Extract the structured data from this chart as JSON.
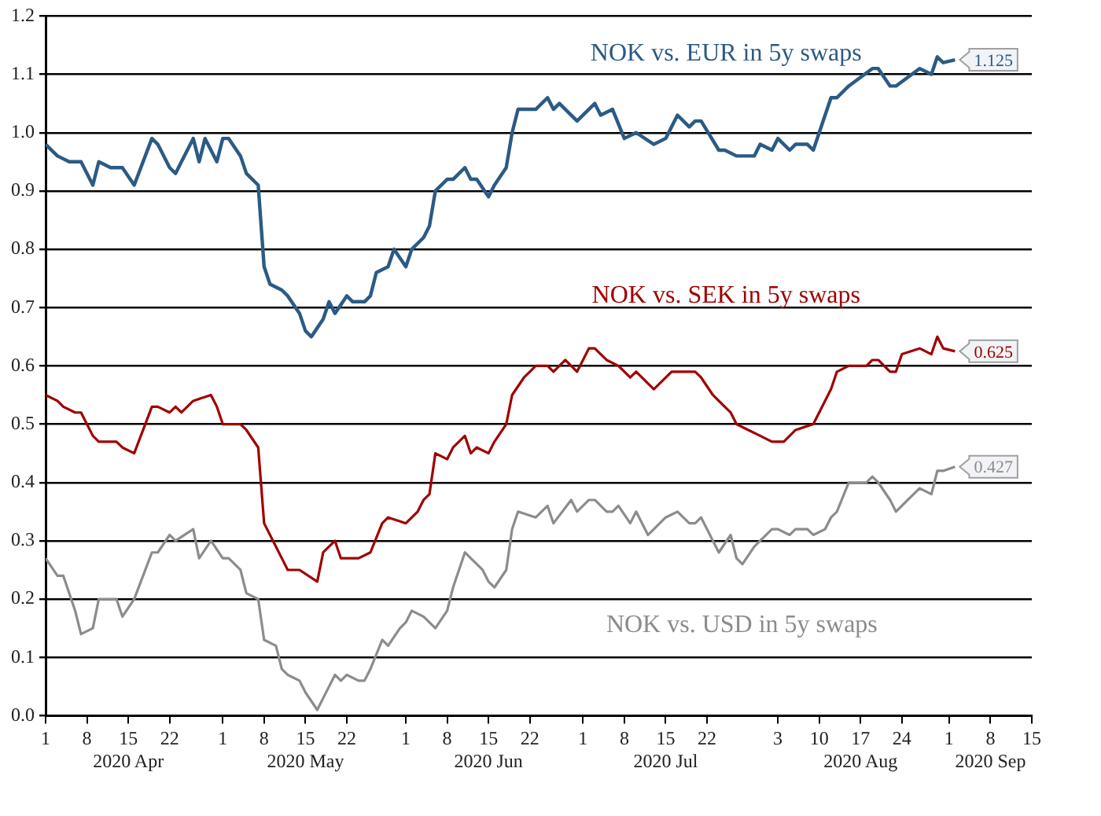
{
  "chart_data": {
    "type": "line",
    "xlim": [
      "2020-04-01",
      "2020-09-15"
    ],
    "xticks": [
      {
        "value": "2020-04-01",
        "label": "1"
      },
      {
        "value": "2020-04-08",
        "label": "8"
      },
      {
        "value": "2020-04-15",
        "label": "15\n2020 Apr"
      },
      {
        "value": "2020-04-22",
        "label": "22"
      },
      {
        "value": "2020-05-01",
        "label": "1"
      },
      {
        "value": "2020-05-08",
        "label": "8"
      },
      {
        "value": "2020-05-15",
        "label": "15\n2020 May"
      },
      {
        "value": "2020-05-22",
        "label": "22"
      },
      {
        "value": "2020-06-01",
        "label": "1"
      },
      {
        "value": "2020-06-08",
        "label": "8"
      },
      {
        "value": "2020-06-15",
        "label": "15\n2020 Jun"
      },
      {
        "value": "2020-06-22",
        "label": "22"
      },
      {
        "value": "2020-07-01",
        "label": "1"
      },
      {
        "value": "2020-07-08",
        "label": "8"
      },
      {
        "value": "2020-07-15",
        "label": "15\n2020 Jul"
      },
      {
        "value": "2020-07-22",
        "label": "22"
      },
      {
        "value": "2020-08-03",
        "label": "3"
      },
      {
        "value": "2020-08-10",
        "label": "10"
      },
      {
        "value": "2020-08-17",
        "label": "17\n2020 Aug"
      },
      {
        "value": "2020-08-24",
        "label": "24"
      },
      {
        "value": "2020-09-01",
        "label": "1"
      },
      {
        "value": "2020-09-08",
        "label": "8\n2020 Sep"
      },
      {
        "value": "2020-09-15",
        "label": "15"
      }
    ],
    "ylim": [
      0,
      1.2
    ],
    "yticks": [
      {
        "value": 0,
        "label": "0.0"
      },
      0.1,
      0.2,
      0.3,
      0.4,
      0.5,
      0.6,
      0.7,
      0.8,
      0.9,
      {
        "value": 1,
        "label": "1.0"
      },
      1.1,
      1.2
    ],
    "grid": "y",
    "series": [
      {
        "name": "NOK vs. EUR in 5y swaps",
        "color": "#2b5a85",
        "x": [
          "2020-04-01",
          "2020-04-03",
          "2020-04-05",
          "2020-04-07",
          "2020-04-09",
          "2020-04-10",
          "2020-04-12",
          "2020-04-14",
          "2020-04-16",
          "2020-04-19",
          "2020-04-20",
          "2020-04-22",
          "2020-04-23",
          "2020-04-24",
          "2020-04-26",
          "2020-04-27",
          "2020-04-28",
          "2020-04-30",
          "2020-05-01",
          "2020-05-02",
          "2020-05-04",
          "2020-05-05",
          "2020-05-07",
          "2020-05-08",
          "2020-05-09",
          "2020-05-11",
          "2020-05-12",
          "2020-05-14",
          "2020-05-15",
          "2020-05-16",
          "2020-05-18",
          "2020-05-19",
          "2020-05-20",
          "2020-05-22",
          "2020-05-23",
          "2020-05-25",
          "2020-05-26",
          "2020-05-27",
          "2020-05-29",
          "2020-05-30",
          "2020-06-01",
          "2020-06-02",
          "2020-06-04",
          "2020-06-05",
          "2020-06-06",
          "2020-06-08",
          "2020-06-09",
          "2020-06-11",
          "2020-06-12",
          "2020-06-13",
          "2020-06-15",
          "2020-06-16",
          "2020-06-18",
          "2020-06-19",
          "2020-06-20",
          "2020-06-23",
          "2020-06-25",
          "2020-06-26",
          "2020-06-27",
          "2020-06-30",
          "2020-07-03",
          "2020-07-04",
          "2020-07-06",
          "2020-07-08",
          "2020-07-10",
          "2020-07-13",
          "2020-07-15",
          "2020-07-17",
          "2020-07-19",
          "2020-07-20",
          "2020-07-21",
          "2020-07-24",
          "2020-07-25",
          "2020-07-27",
          "2020-07-30",
          "2020-07-31",
          "2020-08-02",
          "2020-08-03",
          "2020-08-05",
          "2020-08-06",
          "2020-08-08",
          "2020-08-09",
          "2020-08-12",
          "2020-08-13",
          "2020-08-15",
          "2020-08-19",
          "2020-08-20",
          "2020-08-22",
          "2020-08-23",
          "2020-08-27",
          "2020-08-29",
          "2020-08-30",
          "2020-08-31",
          "2020-09-02"
        ],
        "values": [
          0.98,
          0.96,
          0.95,
          0.95,
          0.91,
          0.95,
          0.94,
          0.94,
          0.91,
          0.99,
          0.98,
          0.94,
          0.93,
          0.95,
          0.99,
          0.95,
          0.99,
          0.95,
          0.99,
          0.99,
          0.96,
          0.93,
          0.91,
          0.77,
          0.74,
          0.73,
          0.72,
          0.69,
          0.66,
          0.65,
          0.68,
          0.71,
          0.69,
          0.72,
          0.71,
          0.71,
          0.72,
          0.76,
          0.77,
          0.8,
          0.77,
          0.8,
          0.82,
          0.84,
          0.9,
          0.92,
          0.92,
          0.94,
          0.92,
          0.92,
          0.89,
          0.91,
          0.94,
          1.0,
          1.04,
          1.04,
          1.06,
          1.04,
          1.05,
          1.02,
          1.05,
          1.03,
          1.04,
          0.99,
          1.0,
          0.98,
          0.99,
          1.03,
          1.01,
          1.02,
          1.02,
          0.97,
          0.97,
          0.96,
          0.96,
          0.98,
          0.97,
          0.99,
          0.97,
          0.98,
          0.98,
          0.97,
          1.06,
          1.06,
          1.08,
          1.11,
          1.11,
          1.08,
          1.08,
          1.11,
          1.1,
          1.13,
          1.12,
          1.125
        ],
        "value_labels": [
          null,
          null,
          null,
          null,
          null,
          null,
          null,
          null,
          null,
          null,
          null,
          null,
          null,
          null,
          null,
          null,
          null,
          null,
          null,
          null,
          null,
          null,
          null,
          null,
          null,
          null,
          null,
          null,
          null,
          null,
          null,
          null,
          null,
          null,
          null,
          null,
          null,
          null,
          null,
          null,
          null,
          null,
          null,
          null,
          null,
          null,
          null,
          null,
          null,
          null,
          null,
          null,
          null,
          null,
          null,
          null,
          null,
          null,
          null,
          null,
          null,
          null,
          null,
          null,
          null,
          null,
          null,
          null,
          null,
          null,
          null,
          null,
          null,
          null,
          null,
          null,
          null,
          null,
          null,
          null,
          null,
          null,
          null,
          null,
          null,
          null,
          null,
          null,
          null,
          null,
          null,
          null,
          null,
          "1.125"
        ]
      },
      {
        "name": "NOK vs. SEK in 5y swaps",
        "color": "#a00000",
        "x": [
          "2020-04-01",
          "2020-04-03",
          "2020-04-04",
          "2020-04-06",
          "2020-04-07",
          "2020-04-09",
          "2020-04-10",
          "2020-04-13",
          "2020-04-14",
          "2020-04-16",
          "2020-04-19",
          "2020-04-20",
          "2020-04-22",
          "2020-04-23",
          "2020-04-24",
          "2020-04-26",
          "2020-04-29",
          "2020-04-30",
          "2020-05-01",
          "2020-05-04",
          "2020-05-05",
          "2020-05-07",
          "2020-05-08",
          "2020-05-10",
          "2020-05-11",
          "2020-05-12",
          "2020-05-14",
          "2020-05-17",
          "2020-05-18",
          "2020-05-20",
          "2020-05-21",
          "2020-05-24",
          "2020-05-26",
          "2020-05-28",
          "2020-05-29",
          "2020-06-01",
          "2020-06-03",
          "2020-06-04",
          "2020-06-05",
          "2020-06-06",
          "2020-06-08",
          "2020-06-09",
          "2020-06-11",
          "2020-06-12",
          "2020-06-13",
          "2020-06-15",
          "2020-06-16",
          "2020-06-18",
          "2020-06-19",
          "2020-06-21",
          "2020-06-22",
          "2020-06-23",
          "2020-06-25",
          "2020-06-26",
          "2020-06-28",
          "2020-06-29",
          "2020-06-30",
          "2020-07-02",
          "2020-07-03",
          "2020-07-05",
          "2020-07-07",
          "2020-07-09",
          "2020-07-10",
          "2020-07-13",
          "2020-07-16",
          "2020-07-20",
          "2020-07-21",
          "2020-07-23",
          "2020-07-25",
          "2020-07-26",
          "2020-07-27",
          "2020-07-29",
          "2020-07-31",
          "2020-08-02",
          "2020-08-04",
          "2020-08-06",
          "2020-08-09",
          "2020-08-10",
          "2020-08-12",
          "2020-08-13",
          "2020-08-15",
          "2020-08-16",
          "2020-08-18",
          "2020-08-19",
          "2020-08-20",
          "2020-08-22",
          "2020-08-23",
          "2020-08-24",
          "2020-08-27",
          "2020-08-29",
          "2020-08-30",
          "2020-08-31",
          "2020-09-02"
        ],
        "values": [
          0.55,
          0.54,
          0.53,
          0.52,
          0.52,
          0.48,
          0.47,
          0.47,
          0.46,
          0.45,
          0.53,
          0.53,
          0.52,
          0.53,
          0.52,
          0.54,
          0.55,
          0.53,
          0.5,
          0.5,
          0.49,
          0.46,
          0.33,
          0.29,
          0.27,
          0.25,
          0.25,
          0.23,
          0.28,
          0.3,
          0.27,
          0.27,
          0.28,
          0.33,
          0.34,
          0.33,
          0.35,
          0.37,
          0.38,
          0.45,
          0.44,
          0.46,
          0.48,
          0.45,
          0.46,
          0.45,
          0.47,
          0.5,
          0.55,
          0.58,
          0.59,
          0.6,
          0.6,
          0.59,
          0.61,
          0.6,
          0.59,
          0.63,
          0.63,
          0.61,
          0.6,
          0.58,
          0.59,
          0.56,
          0.59,
          0.59,
          0.58,
          0.55,
          0.53,
          0.52,
          0.5,
          0.49,
          0.48,
          0.47,
          0.47,
          0.49,
          0.5,
          0.52,
          0.56,
          0.59,
          0.6,
          0.6,
          0.6,
          0.61,
          0.61,
          0.59,
          0.59,
          0.62,
          0.63,
          0.62,
          0.65,
          0.63,
          0.625
        ],
        "value_labels": [
          null,
          null,
          null,
          null,
          null,
          null,
          null,
          null,
          null,
          null,
          null,
          null,
          null,
          null,
          null,
          null,
          null,
          null,
          null,
          null,
          null,
          null,
          null,
          null,
          null,
          null,
          null,
          null,
          null,
          null,
          null,
          null,
          null,
          null,
          null,
          null,
          null,
          null,
          null,
          null,
          null,
          null,
          null,
          null,
          null,
          null,
          null,
          null,
          null,
          null,
          null,
          null,
          null,
          null,
          null,
          null,
          null,
          null,
          null,
          null,
          null,
          null,
          null,
          null,
          null,
          null,
          null,
          null,
          null,
          null,
          null,
          null,
          null,
          null,
          null,
          null,
          null,
          null,
          null,
          null,
          null,
          null,
          null,
          null,
          null,
          null,
          null,
          null,
          null,
          null,
          null,
          null,
          "0.625"
        ]
      },
      {
        "name": "NOK vs. USD in 5y swaps",
        "color": "#8c8c8c",
        "x": [
          "2020-04-01",
          "2020-04-03",
          "2020-04-04",
          "2020-04-06",
          "2020-04-07",
          "2020-04-09",
          "2020-04-10",
          "2020-04-13",
          "2020-04-14",
          "2020-04-16",
          "2020-04-19",
          "2020-04-20",
          "2020-04-22",
          "2020-04-23",
          "2020-04-26",
          "2020-04-27",
          "2020-04-29",
          "2020-05-01",
          "2020-05-02",
          "2020-05-04",
          "2020-05-05",
          "2020-05-07",
          "2020-05-08",
          "2020-05-10",
          "2020-05-11",
          "2020-05-12",
          "2020-05-14",
          "2020-05-15",
          "2020-05-17",
          "2020-05-18",
          "2020-05-20",
          "2020-05-21",
          "2020-05-22",
          "2020-05-24",
          "2020-05-25",
          "2020-05-26",
          "2020-05-28",
          "2020-05-29",
          "2020-05-31",
          "2020-06-01",
          "2020-06-02",
          "2020-06-04",
          "2020-06-05",
          "2020-06-06",
          "2020-06-08",
          "2020-06-09",
          "2020-06-11",
          "2020-06-12",
          "2020-06-14",
          "2020-06-15",
          "2020-06-16",
          "2020-06-18",
          "2020-06-19",
          "2020-06-20",
          "2020-06-23",
          "2020-06-25",
          "2020-06-26",
          "2020-06-29",
          "2020-06-30",
          "2020-07-02",
          "2020-07-03",
          "2020-07-05",
          "2020-07-06",
          "2020-07-07",
          "2020-07-09",
          "2020-07-10",
          "2020-07-12",
          "2020-07-13",
          "2020-07-15",
          "2020-07-17",
          "2020-07-19",
          "2020-07-20",
          "2020-07-21",
          "2020-07-23",
          "2020-07-24",
          "2020-07-26",
          "2020-07-27",
          "2020-07-28",
          "2020-07-30",
          "2020-07-31",
          "2020-08-02",
          "2020-08-03",
          "2020-08-05",
          "2020-08-06",
          "2020-08-08",
          "2020-08-09",
          "2020-08-11",
          "2020-08-12",
          "2020-08-13",
          "2020-08-15",
          "2020-08-18",
          "2020-08-19",
          "2020-08-20",
          "2020-08-22",
          "2020-08-23",
          "2020-08-25",
          "2020-08-27",
          "2020-08-29",
          "2020-08-30",
          "2020-08-31",
          "2020-09-02"
        ],
        "values": [
          0.27,
          0.24,
          0.24,
          0.18,
          0.14,
          0.15,
          0.2,
          0.2,
          0.17,
          0.2,
          0.28,
          0.28,
          0.31,
          0.3,
          0.32,
          0.27,
          0.3,
          0.27,
          0.27,
          0.25,
          0.21,
          0.2,
          0.13,
          0.12,
          0.08,
          0.07,
          0.06,
          0.04,
          0.01,
          0.03,
          0.07,
          0.06,
          0.07,
          0.06,
          0.06,
          0.08,
          0.13,
          0.12,
          0.15,
          0.16,
          0.18,
          0.17,
          0.16,
          0.15,
          0.18,
          0.22,
          0.28,
          0.27,
          0.25,
          0.23,
          0.22,
          0.25,
          0.32,
          0.35,
          0.34,
          0.36,
          0.33,
          0.37,
          0.35,
          0.37,
          0.37,
          0.35,
          0.35,
          0.36,
          0.33,
          0.35,
          0.31,
          0.32,
          0.34,
          0.35,
          0.33,
          0.33,
          0.34,
          0.3,
          0.28,
          0.31,
          0.27,
          0.26,
          0.29,
          0.3,
          0.32,
          0.32,
          0.31,
          0.32,
          0.32,
          0.31,
          0.32,
          0.34,
          0.35,
          0.4,
          0.4,
          0.41,
          0.4,
          0.37,
          0.35,
          0.37,
          0.39,
          0.38,
          0.42,
          0.42,
          0.427
        ],
        "value_labels": [
          null,
          null,
          null,
          null,
          null,
          null,
          null,
          null,
          null,
          null,
          null,
          null,
          null,
          null,
          null,
          null,
          null,
          null,
          null,
          null,
          null,
          null,
          null,
          null,
          null,
          null,
          null,
          null,
          null,
          null,
          null,
          null,
          null,
          null,
          null,
          null,
          null,
          null,
          null,
          null,
          null,
          null,
          null,
          null,
          null,
          null,
          null,
          null,
          null,
          null,
          null,
          null,
          null,
          null,
          null,
          null,
          null,
          null,
          null,
          null,
          null,
          null,
          null,
          null,
          null,
          null,
          null,
          null,
          null,
          null,
          null,
          null,
          null,
          null,
          null,
          null,
          null,
          null,
          null,
          null,
          null,
          null,
          null,
          null,
          null,
          null,
          null,
          null,
          null,
          null,
          null,
          null,
          null,
          null,
          null,
          null,
          null,
          null,
          null,
          null,
          "0.427"
        ]
      }
    ]
  }
}
